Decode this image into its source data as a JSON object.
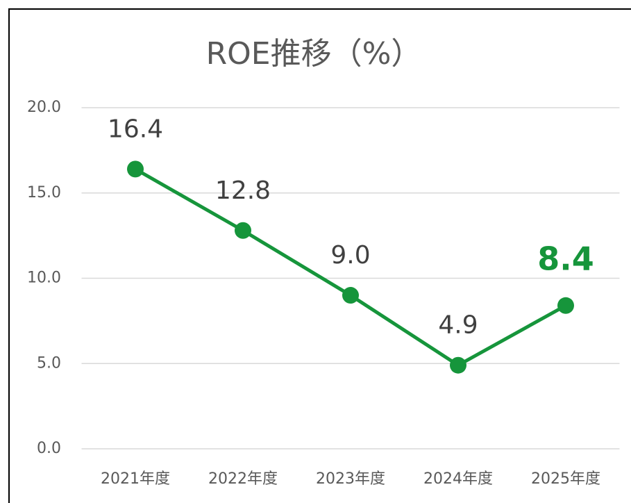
{
  "chart_data": {
    "type": "line",
    "title": "ROE推移（%）",
    "categories": [
      "2021年度",
      "2022年度",
      "2023年度",
      "2024年度",
      "2025年度"
    ],
    "series": [
      {
        "name": "ROE",
        "color": "#16953b",
        "values": [
          16.4,
          12.8,
          9.0,
          4.9,
          8.4
        ],
        "value_labels": [
          "16.4",
          "12.8",
          "9.0",
          "4.9",
          "8.4"
        ]
      }
    ],
    "ylim": [
      0,
      20
    ],
    "yticks": [
      {
        "value": 0,
        "label": "0.0"
      },
      {
        "value": 5,
        "label": "5.0"
      },
      {
        "value": 10,
        "label": "10.0"
      },
      {
        "value": 15,
        "label": "15.0"
      },
      {
        "value": 20,
        "label": "20.0"
      }
    ],
    "grid": true
  }
}
